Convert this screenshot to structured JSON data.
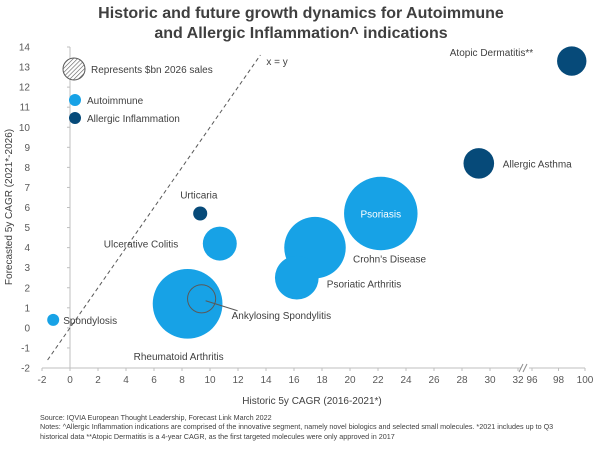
{
  "chart_data": {
    "type": "bubble",
    "title_line1": "Historic and future growth dynamics for Autoimmune",
    "title_line2": "and Allergic Inflammation^ indications",
    "xlabel": "Historic 5y CAGR (2016-2021*)",
    "ylabel": "Forecasted 5y CAGR (2021*-2026)",
    "xlim": [
      -2,
      100
    ],
    "ylim": [
      -2,
      14
    ],
    "axis_break": "between 32 and 96",
    "x_tick_labels": [
      "-2",
      "0",
      "2",
      "4",
      "6",
      "8",
      "10",
      "12",
      "14",
      "16",
      "18",
      "20",
      "22",
      "24",
      "26",
      "28",
      "30",
      "32",
      "96",
      "98",
      "100"
    ],
    "y_tick_labels": [
      "-2",
      "-1",
      "0",
      "1",
      "2",
      "3",
      "4",
      "5",
      "6",
      "7",
      "8",
      "9",
      "10",
      "11",
      "12",
      "13",
      "14"
    ],
    "reference_line_label": "x = y",
    "legend": {
      "size_label": "Represents $bn 2026 sales",
      "entries": [
        {
          "name": "Autoimmune",
          "color": "#17a2e6"
        },
        {
          "name": "Allergic Inflammation",
          "color": "#064a79"
        }
      ]
    },
    "points": [
      {
        "name": "Atopic Dermatitis**",
        "group": "Allergic Inflammation",
        "x": 99,
        "y": 13.3,
        "size": 2.4
      },
      {
        "name": "Allergic Asthma",
        "group": "Allergic Inflammation",
        "x": 29.2,
        "y": 8.2,
        "size": 2.6
      },
      {
        "name": "Urticaria",
        "group": "Allergic Inflammation",
        "x": 9.3,
        "y": 5.7,
        "size": 0.55
      },
      {
        "name": "Psoriasis",
        "group": "Autoimmune",
        "x": 22.2,
        "y": 5.7,
        "size": 15
      },
      {
        "name": "Crohn's Disease",
        "group": "Autoimmune",
        "x": 17.5,
        "y": 4.0,
        "size": 10.5
      },
      {
        "name": "Ulcerative Colitis",
        "group": "Autoimmune",
        "x": 10.7,
        "y": 4.2,
        "size": 3.2
      },
      {
        "name": "Psoriatic Arthritis",
        "group": "Autoimmune",
        "x": 16.2,
        "y": 2.5,
        "size": 5.3
      },
      {
        "name": "Rheumatoid Arthritis",
        "group": "Autoimmune",
        "x": 8.4,
        "y": 1.2,
        "size": 13.5
      },
      {
        "name": "Ankylosing Spondylitis",
        "group": "Autoimmune",
        "x": 9.4,
        "y": 1.45,
        "size": 2.2
      },
      {
        "name": "Spondylosis",
        "group": "Autoimmune",
        "x": -1.2,
        "y": 0.4,
        "size": 0.4
      }
    ]
  },
  "footer": {
    "source": "Source: IQVIA European Thought Leadership, Forecast Link March 2022",
    "notes_line1": "Notes: ^Allergic Inflammation indications are comprised of the innovative segment, namely novel biologics and selected small molecules. *2021 includes up to Q3",
    "notes_line2": "historical data **Atopic Dermatitis is a 4-year CAGR, as the first targeted molecules were only approved in 2017"
  }
}
